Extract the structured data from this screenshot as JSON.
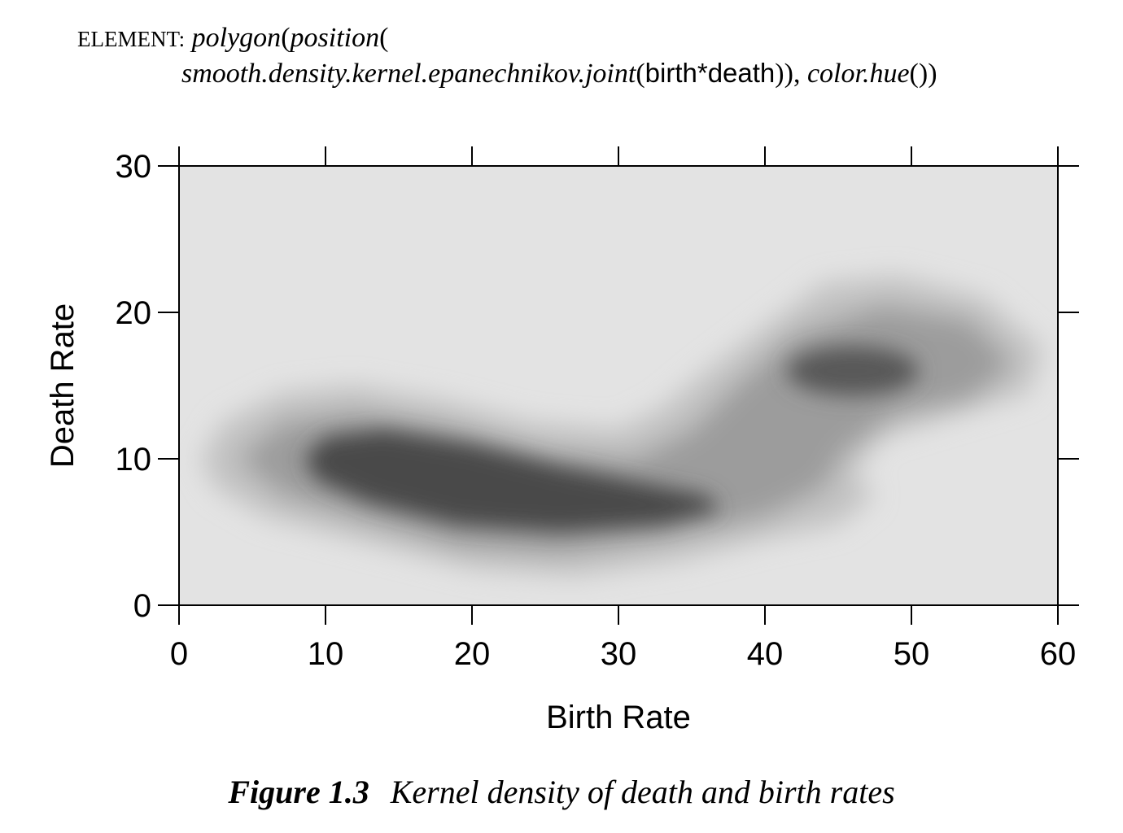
{
  "spec": {
    "keyword": "ELEMENT:",
    "f_polygon": "polygon",
    "p1": "(",
    "f_position": "position",
    "p2": "(",
    "f_smooth": "smooth.density.kernel.epanechnikov.joint",
    "p3": "(",
    "v_birth": "birth",
    "op": "*",
    "v_death": "death",
    "p4": ")), ",
    "f_color": "color.hue",
    "p5": "())"
  },
  "caption": {
    "number": "Figure 1.3",
    "text": "Kernel density of death and birth rates"
  },
  "chart_data": {
    "type": "heatmap",
    "title": "",
    "xlabel": "Birth Rate",
    "ylabel": "Death Rate",
    "xlim": [
      0,
      60
    ],
    "ylim": [
      0,
      30
    ],
    "xticks": [
      0,
      10,
      20,
      30,
      40,
      50,
      60
    ],
    "yticks": [
      0,
      10,
      20,
      30
    ],
    "grid": false,
    "colors": {
      "background": "#e3e3e3",
      "densest": "#474747"
    },
    "density_peaks": [
      {
        "x": 14,
        "y": 9.5,
        "level": 1.0
      },
      {
        "x": 21,
        "y": 8.0,
        "level": 1.0
      },
      {
        "x": 28,
        "y": 6.8,
        "level": 0.95
      },
      {
        "x": 46,
        "y": 16,
        "level": 0.85
      }
    ]
  }
}
